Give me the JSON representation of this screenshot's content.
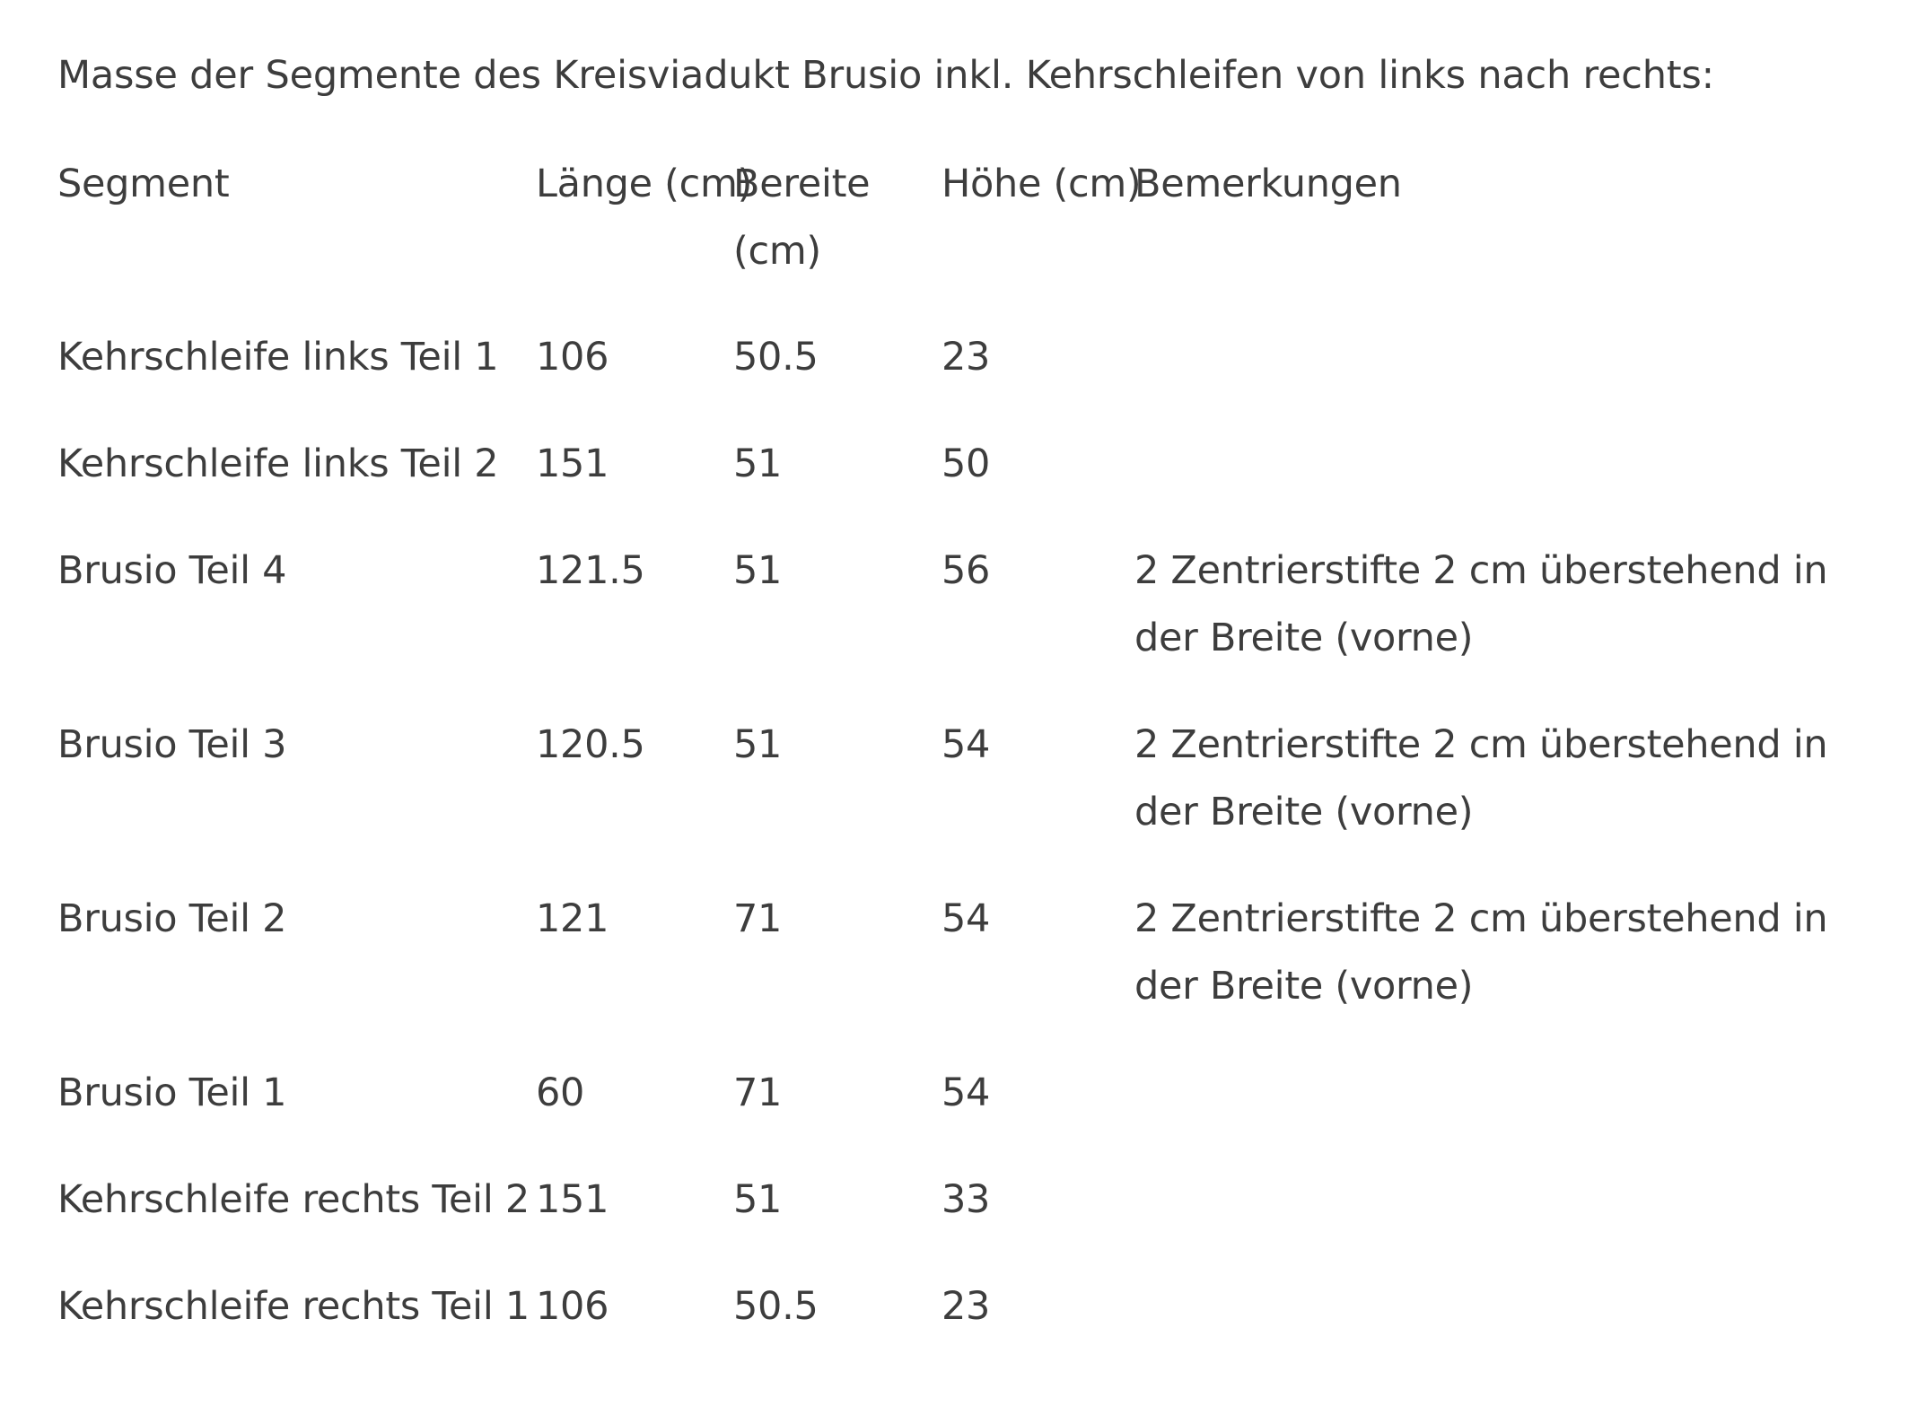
{
  "intro": "Masse der Segmente des Kreisviadukt Brusio inkl. Kehrschleifen von links nach rechts:",
  "table": {
    "headers": {
      "segment": "Segment",
      "laenge": "Länge (cm)",
      "breite": "Bereite (cm)",
      "hoehe": "Höhe (cm)",
      "bemerkungen": "Bemerkungen"
    },
    "rows": [
      {
        "segment": "Kehrschleife links Teil 1",
        "laenge": "106",
        "breite": "50.5",
        "hoehe": "23",
        "bemerkungen": ""
      },
      {
        "segment": "Kehrschleife links Teil 2",
        "laenge": "151",
        "breite": "51",
        "hoehe": "50",
        "bemerkungen": ""
      },
      {
        "segment": "Brusio Teil 4",
        "laenge": "121.5",
        "breite": "51",
        "hoehe": "56",
        "bemerkungen": "2 Zentrierstifte 2 cm überstehend in der Breite (vorne)"
      },
      {
        "segment": "Brusio Teil 3",
        "laenge": "120.5",
        "breite": "51",
        "hoehe": "54",
        "bemerkungen": "2 Zentrierstifte 2 cm überstehend in der Breite (vorne)"
      },
      {
        "segment": "Brusio Teil 2",
        "laenge": "121",
        "breite": "71",
        "hoehe": "54",
        "bemerkungen": "2 Zentrierstifte 2 cm überstehend in der Breite (vorne)"
      },
      {
        "segment": "Brusio Teil 1",
        "laenge": "60",
        "breite": "71",
        "hoehe": "54",
        "bemerkungen": ""
      },
      {
        "segment": "Kehrschleife rechts Teil 2",
        "laenge": "151",
        "breite": "51",
        "hoehe": "33",
        "bemerkungen": ""
      },
      {
        "segment": "Kehrschleife rechts Teil 1",
        "laenge": "106",
        "breite": "50.5",
        "hoehe": "23",
        "bemerkungen": ""
      }
    ]
  }
}
